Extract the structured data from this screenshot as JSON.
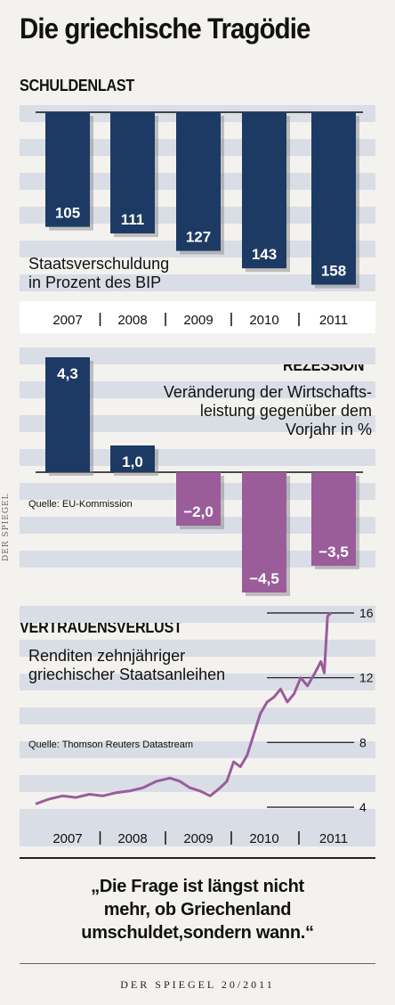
{
  "header": {
    "title": "Die griechische Tragödie"
  },
  "charts": [
    {
      "type": "bar",
      "section": "SCHULDENLAST",
      "subtitle_lines": [
        "Staatsverschuldung",
        "in Prozent des BIP"
      ],
      "categories": [
        "2007",
        "2008",
        "2009",
        "2010",
        "2011"
      ],
      "values": [
        105,
        111,
        127,
        143,
        158
      ],
      "value_labels": [
        "105",
        "111",
        "127",
        "143",
        "158"
      ],
      "color": "#1c3a63"
    },
    {
      "type": "bar",
      "section": "REZESSION",
      "subtitle_lines": [
        "Veränderung der Wirtschafts-",
        "leistung gegenüber dem",
        "Vorjahr in %"
      ],
      "source": "Quelle: EU-Kommission",
      "categories": [
        "2007",
        "2008",
        "2009",
        "2010",
        "2011"
      ],
      "values": [
        4.3,
        1.0,
        -2.0,
        -4.5,
        -3.5
      ],
      "value_labels": [
        "4,3",
        "1,0",
        "−2,0",
        "−4,5",
        "−3,5"
      ],
      "positive_color": "#1c3a63",
      "negative_color": "#9b5c9a"
    },
    {
      "type": "line",
      "section": "VERTRAUENSVERLUST",
      "subtitle_lines": [
        "Renditen zehnjähriger",
        "griechischer Staatsanleihen"
      ],
      "source": "Quelle: Thomson Reuters Datastream",
      "x_labels": [
        "2007",
        "2008",
        "2009",
        "2010",
        "2011"
      ],
      "y_ticks": [
        "16",
        "12",
        "8",
        "4"
      ],
      "ylim": [
        4,
        16
      ],
      "x": [
        2007.0,
        2007.2,
        2007.4,
        2007.6,
        2007.8,
        2008.0,
        2008.2,
        2008.4,
        2008.6,
        2008.8,
        2009.0,
        2009.15,
        2009.3,
        2009.45,
        2009.6,
        2009.75,
        2009.85,
        2009.95,
        2010.05,
        2010.15,
        2010.25,
        2010.35,
        2010.45,
        2010.55,
        2010.65,
        2010.75,
        2010.85,
        2010.95,
        2011.05,
        2011.15,
        2011.25,
        2011.3,
        2011.35,
        2011.4
      ],
      "y": [
        4.2,
        4.5,
        4.7,
        4.6,
        4.8,
        4.7,
        4.9,
        5.0,
        5.2,
        5.6,
        5.8,
        5.6,
        5.2,
        5.0,
        4.7,
        5.2,
        5.6,
        6.8,
        6.5,
        7.2,
        8.5,
        9.8,
        10.5,
        10.8,
        11.3,
        10.5,
        11.0,
        12.0,
        11.5,
        12.2,
        13.0,
        12.3,
        15.8,
        16.0
      ],
      "color": "#9b5c9a"
    }
  ],
  "watermark": "DER SPIEGEL",
  "quote": {
    "lines": [
      "„Die Frage ist längst nicht",
      "mehr, ob Griechenland",
      "umschuldet,sondern wann.“"
    ]
  },
  "footer": "DER SPIEGEL 20/2011"
}
